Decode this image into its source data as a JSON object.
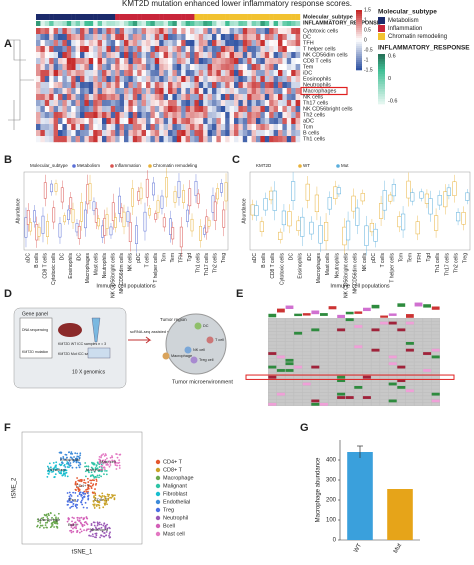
{
  "title": "KMT2D mutation enhanced lower inflammatory response scores.",
  "panels": {
    "A": {
      "label": "A",
      "rows": [
        "Cytotoxic cells",
        "DC",
        "TFH",
        "T helper cells",
        "NK CD56dim cells",
        "CD8 T cells",
        "Tem",
        "iDC",
        "Eosinophils",
        "Neutrophils",
        "Macrophages",
        "NK cells",
        "Th17 cells",
        "NK CD56bright cells",
        "Th2 cells",
        "aDC",
        "Tcm",
        "B cells",
        "Th1 cells"
      ],
      "highlight_row": "Macrophages",
      "annotation_labels": [
        "Molecular_subtype",
        "INFLAMMATORY_RESPONSE"
      ],
      "scale_ticks": [
        1.5,
        1,
        0.5,
        0,
        -0.5,
        -1,
        -1.5
      ],
      "subtype_title": "Molecular_subtype",
      "subtypes": [
        "Metabolism",
        "Inflammation",
        "Chromatin remodeling"
      ],
      "subtype_colors": [
        "#1b2a6b",
        "#c8253a",
        "#f2c230"
      ],
      "response_title": "INFLAMMATORY_RESPONSE",
      "response_ticks": [
        0.6,
        0,
        -0.6
      ]
    },
    "B": {
      "label": "B",
      "legend_title": "Molecular_subtype",
      "legend": [
        "Metabolism",
        "Inflammation",
        "Chromatin remodeling"
      ],
      "legend_colors": [
        "#5b6fd6",
        "#d9534f",
        "#e8b23a"
      ],
      "y_label": "Abundance",
      "x_label": "Immune cell populations",
      "categories": [
        "aDC",
        "B cells",
        "CD8 T cells",
        "Cytotoxic cells",
        "DC",
        "Eosinophils",
        "iDC",
        "Macrophages",
        "Mast cells",
        "Neutrophils",
        "NK CD56bright cells",
        "NK CD56dim cells",
        "NK cells",
        "pDC",
        "T cells",
        "T helper cells",
        "Tcm",
        "Tem",
        "TFH",
        "Tgd",
        "Th1 cells",
        "Th17 cells",
        "Th2 cells",
        "Treg"
      ]
    },
    "C": {
      "label": "C",
      "legend_title": "KMT2D",
      "legend": [
        "WT",
        "Mut"
      ],
      "legend_colors": [
        "#e8b23a",
        "#5aaedc"
      ],
      "y_label": "Abundance",
      "x_label": "Immune cell populations",
      "categories": [
        "aDC",
        "B cells",
        "CD8 T cells",
        "Cytotoxic cells",
        "DC",
        "Eosinophils",
        "iDC",
        "Macrophages",
        "Mast cells",
        "Neutrophils",
        "NK CD56bright cells",
        "NK CD56dim cells",
        "NK cells",
        "pDC",
        "T cells",
        "T helper cells",
        "Tcm",
        "Tem",
        "TFH",
        "Tgd",
        "Th1 cells",
        "Th17 cells",
        "Th2 cells",
        "Treg"
      ]
    },
    "D": {
      "label": "D",
      "gene_panel": "Gene panel",
      "dna": "DNA sequencing",
      "mutation": "KMT2D mutation",
      "wt": "KMT2D WT ICC samples n = 3",
      "mut": "KMT2D Mut ICC samples n = 2",
      "genomics": "10 X genomics",
      "strategy": "scRNA-seq assisted strategy",
      "tumor_region": "Tumor region",
      "tme": "Tumor microenvironment",
      "cells": [
        "DC",
        "T cell",
        "Treg cell",
        "NK cell",
        "Macrophage"
      ]
    },
    "E": {
      "label": "E"
    },
    "F": {
      "label": "F",
      "x_label": "tSNE_1",
      "y_label": "tSNE_2",
      "clusters": [
        "CD4+ T",
        "CD8+ T",
        "Macrophage",
        "Malignant",
        "Fibroblast",
        "Endothelial",
        "Treg",
        "Neutrophil",
        "Bcell",
        "Mast cell"
      ],
      "cluster_colors": [
        "#e4572e",
        "#c9a227",
        "#6aa84f",
        "#2ec4a6",
        "#17becf",
        "#3d8bd9",
        "#4a6fe3",
        "#9b59b6",
        "#d35fb7",
        "#e377c2"
      ]
    }
  },
  "chart_data": {
    "type": "bar",
    "label": "G",
    "categories": [
      "WT",
      "Mut"
    ],
    "values": [
      440,
      255
    ],
    "errors": [
      30,
      0
    ],
    "colors": [
      "#3aa0dc",
      "#e6a419"
    ],
    "y_label": "Macrophage abundance",
    "ylim": [
      0,
      500
    ],
    "yticks": [
      0,
      100,
      200,
      300,
      400
    ]
  }
}
